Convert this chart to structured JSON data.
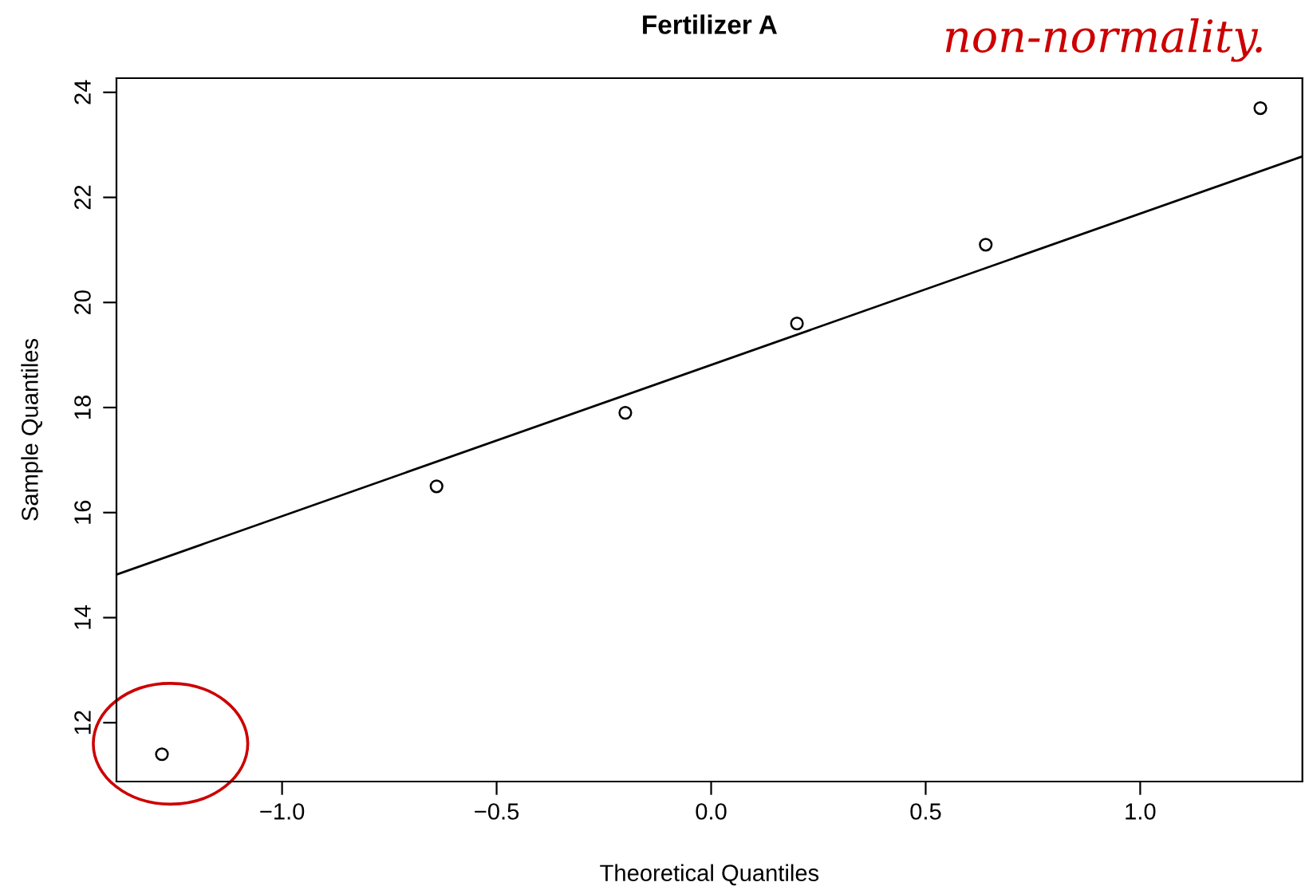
{
  "chart_data": {
    "type": "scatter",
    "title": "Fertilizer A",
    "xlabel": "Theoretical Quantiles",
    "ylabel": "Sample Quantiles",
    "series": [
      {
        "marker": "circle",
        "color": "#000000",
        "x": [
          -1.28,
          -0.64,
          -0.2,
          0.2,
          0.64,
          1.28
        ],
        "values": [
          11.4,
          16.5,
          17.9,
          19.6,
          21.1,
          23.7
        ]
      },
      {
        "type": "line",
        "color": "#000000",
        "x": [
          -1.386,
          1.378
        ],
        "values": [
          14.82,
          22.78
        ]
      }
    ],
    "grid": false,
    "legend": false,
    "xlim": [
      -1.386,
      1.378
    ],
    "xticks": [
      {
        "value": -1.0,
        "label": "−1.0"
      },
      {
        "value": -0.5,
        "label": "−0.5"
      },
      {
        "value": 0.0,
        "label": "0.0"
      },
      {
        "value": 0.5,
        "label": "0.5"
      },
      {
        "value": 1.0,
        "label": "1.0"
      }
    ],
    "ylim": [
      10.88,
      24.27
    ],
    "yticks": [
      12,
      14,
      16,
      18,
      20,
      22,
      24
    ],
    "annotations": [
      "non-normality."
    ]
  }
}
